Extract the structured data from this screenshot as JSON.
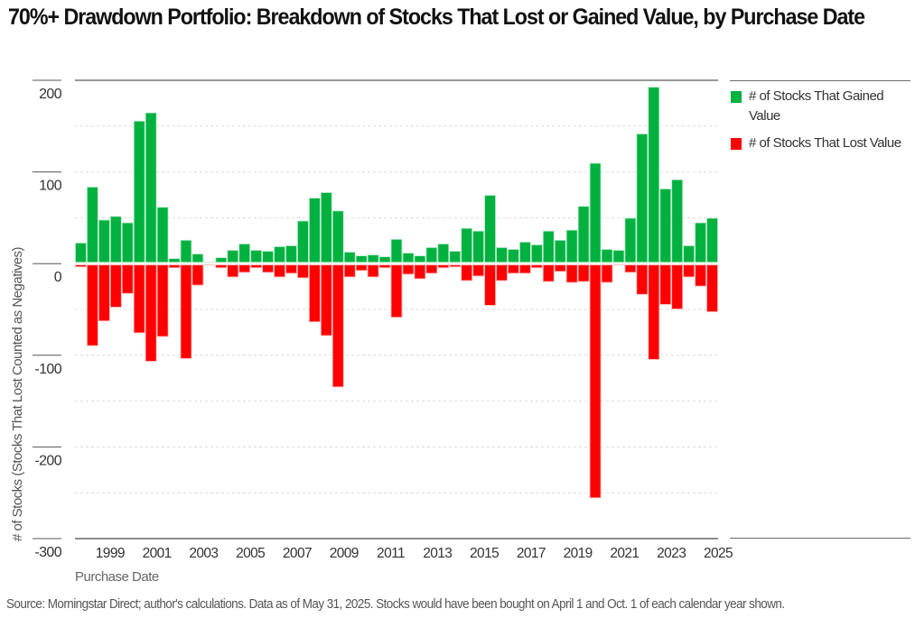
{
  "title": "70%+ Drawdown Portfolio: Breakdown of Stocks That Lost or Gained Value, by Purchase Date",
  "source": "Source: Morningstar Direct; author's calculations. Data as of May 31, 2025. Stocks would have been bought on April 1 and Oct. 1 of each calendar year shown.",
  "colors": {
    "gained": "#00b140",
    "lost": "#ff0000"
  },
  "chart_data": {
    "type": "bar",
    "title": "70%+ Drawdown Portfolio: Breakdown of Stocks That Lost or Gained Value, by Purchase Date",
    "xlabel": "Purchase Date",
    "ylabel": "# of Stocks (Stocks That Lost Counted as Negatives)",
    "ylim": [
      -300,
      200
    ],
    "yticks": [
      200,
      100,
      0,
      -100,
      -200,
      -300
    ],
    "ytick_labels": [
      "200",
      "100",
      "0",
      "-100",
      "-200",
      "-300"
    ],
    "grid": "dashed horizontal every 50",
    "xtick_labels": [
      "1999",
      "2001",
      "2003",
      "2005",
      "2007",
      "2009",
      "2011",
      "2013",
      "2015",
      "2017",
      "2019",
      "2021",
      "2023",
      "2025"
    ],
    "legend_position": "right",
    "categories": [
      "Apr 1998",
      "Oct 1998",
      "Apr 1999",
      "Oct 1999",
      "Apr 2000",
      "Oct 2000",
      "Apr 2001",
      "Oct 2001",
      "Apr 2002",
      "Oct 2002",
      "Apr 2003",
      "Oct 2003",
      "Apr 2004",
      "Oct 2004",
      "Apr 2005",
      "Oct 2005",
      "Apr 2006",
      "Oct 2006",
      "Apr 2007",
      "Oct 2007",
      "Apr 2008",
      "Oct 2008",
      "Apr 2009",
      "Oct 2009",
      "Apr 2010",
      "Oct 2010",
      "Apr 2011",
      "Oct 2011",
      "Apr 2012",
      "Oct 2012",
      "Apr 2013",
      "Oct 2013",
      "Apr 2014",
      "Oct 2014",
      "Apr 2015",
      "Oct 2015",
      "Apr 2016",
      "Oct 2016",
      "Apr 2017",
      "Oct 2017",
      "Apr 2018",
      "Oct 2018",
      "Apr 2019",
      "Oct 2019",
      "Apr 2020",
      "Oct 2020",
      "Apr 2021",
      "Oct 2021",
      "Apr 2022",
      "Oct 2022",
      "Apr 2023",
      "Oct 2023",
      "Apr 2024",
      "Oct 2024",
      "Apr 2025"
    ],
    "series": [
      {
        "name": "# of Stocks That Gained Value",
        "values": [
          21,
          82,
          46,
          50,
          43,
          154,
          163,
          60,
          4,
          24,
          9,
          0,
          5,
          13,
          20,
          13,
          12,
          17,
          18,
          45,
          70,
          76,
          56,
          11,
          7,
          8,
          6,
          25,
          10,
          7,
          16,
          20,
          12,
          37,
          34,
          73,
          16,
          14,
          22,
          19,
          34,
          24,
          35,
          61,
          108,
          14,
          13,
          48,
          140,
          191,
          80,
          90,
          18,
          43,
          48
        ]
      },
      {
        "name": "# of Stocks That Lost Value",
        "values": [
          -2,
          -88,
          -61,
          -46,
          -31,
          -74,
          -105,
          -78,
          -3,
          -102,
          -22,
          0,
          -3,
          -13,
          -8,
          -3,
          -8,
          -13,
          -9,
          -14,
          -62,
          -77,
          -133,
          -13,
          -6,
          -13,
          -3,
          -57,
          -10,
          -15,
          -9,
          -3,
          -2,
          -17,
          -12,
          -44,
          -17,
          -9,
          -9,
          -3,
          -18,
          -7,
          -19,
          -18,
          -254,
          -19,
          0,
          -8,
          -32,
          -103,
          -43,
          -48,
          -13,
          -23,
          -51
        ]
      }
    ]
  }
}
